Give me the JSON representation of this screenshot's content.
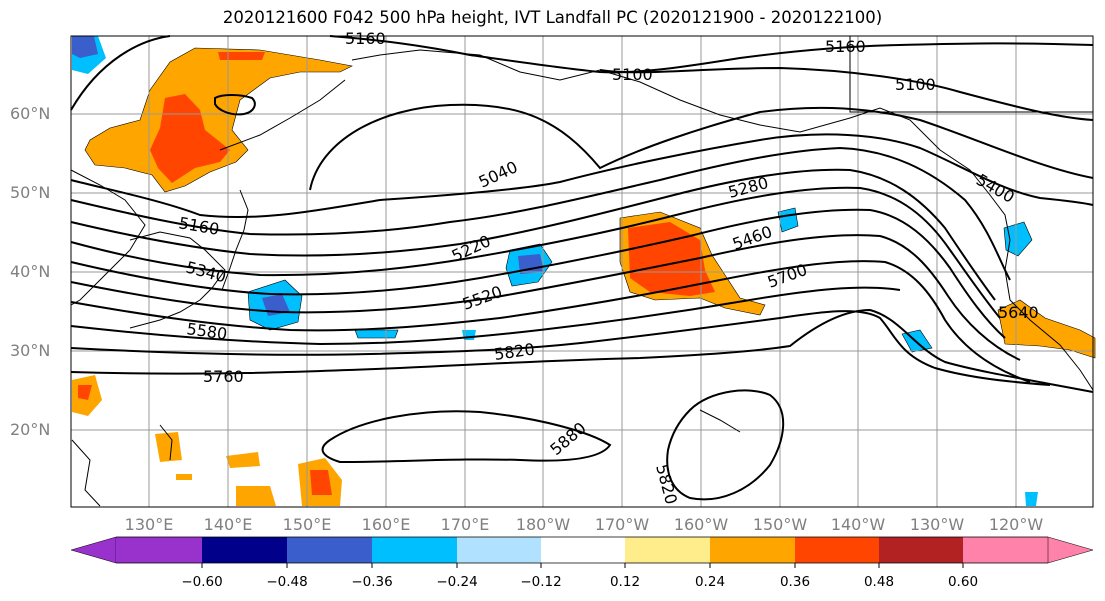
{
  "title": "2020121600 F042 500 hPa height, IVT Landfall PC (2020121900 - 2020122100)",
  "lat_labels": [
    "60°N",
    "50°N",
    "40°N",
    "30°N",
    "20°N"
  ],
  "lon_labels": [
    "130°E",
    "140°E",
    "150°E",
    "160°E",
    "170°E",
    "180°W",
    "170°W",
    "160°W",
    "150°W",
    "140°W",
    "130°W",
    "120°W"
  ],
  "contour_labels": [
    "5160",
    "5160",
    "5100",
    "5100",
    "5040",
    "5160",
    "5280",
    "5400",
    "5220",
    "5340",
    "5460",
    "5520",
    "5700",
    "5580",
    "5640",
    "5820",
    "5760",
    "5880",
    "5820"
  ],
  "colorbar": {
    "ticks": [
      "−0.60",
      "−0.48",
      "−0.36",
      "−0.24",
      "−0.12",
      "0.12",
      "0.24",
      "0.36",
      "0.48",
      "0.60"
    ],
    "colors": [
      "#9932cc",
      "#00008b",
      "#3a5fcd",
      "#00bfff",
      "#b0e2ff",
      "#ffffff",
      "#ffec8b",
      "#ffa500",
      "#ff4500",
      "#b22222",
      "#ff82ab"
    ]
  },
  "colors": {
    "coast": "#000000",
    "grid": "#999999",
    "label": "#808080"
  }
}
